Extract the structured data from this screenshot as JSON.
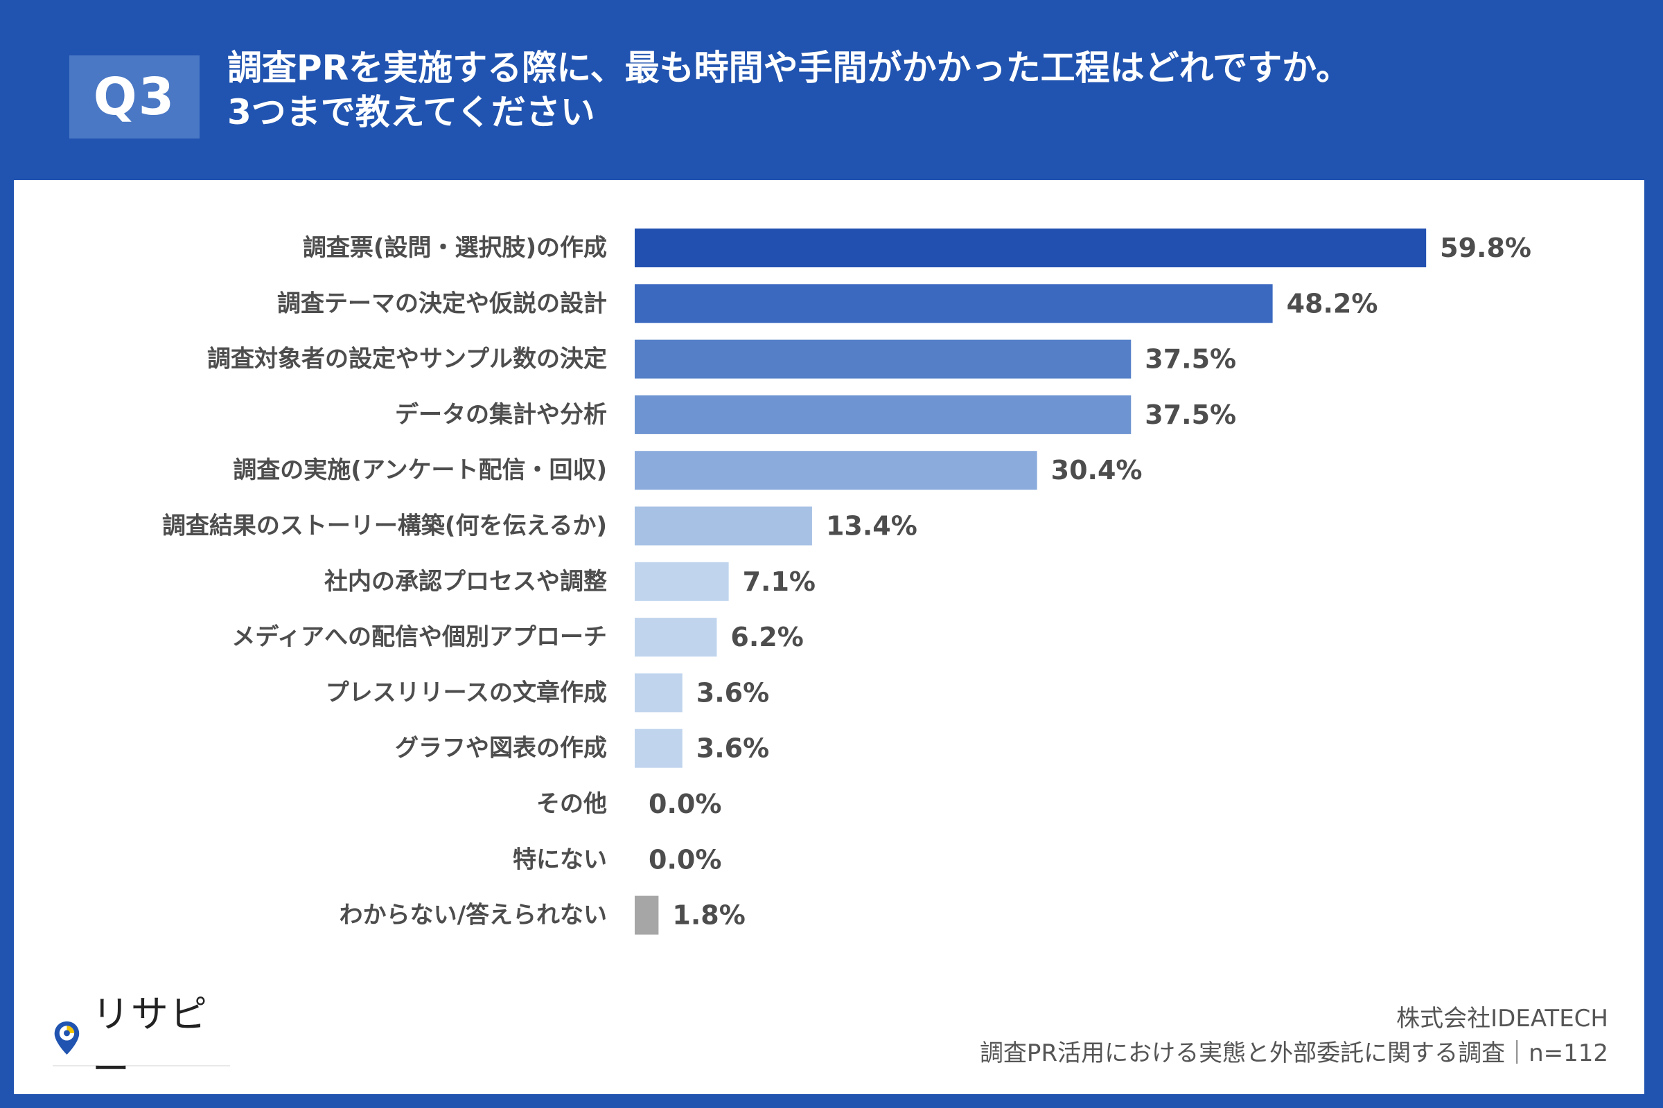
{
  "header": {
    "badge": "Q3",
    "title_line1": "調査PRを実施する際に、最も時間や手間がかかった工程はどれですか。",
    "title_line2": "3つまで教えてください"
  },
  "colors": {
    "background": "#2154b0",
    "badge": "#4a78c5",
    "panel": "#ffffff",
    "text": "#4d4d4d"
  },
  "chart_data": {
    "type": "bar",
    "orientation": "horizontal",
    "title": "調査PRを実施する際に、最も時間や手間がかかった工程はどれですか。3つまで教えてください",
    "xlabel": "",
    "ylabel": "",
    "xlim": [
      0,
      100
    ],
    "unit": "%",
    "grid": false,
    "categories": [
      "調査票(設問・選択肢)の作成",
      "調査テーマの決定や仮説の設計",
      "調査対象者の設定やサンプル数の決定",
      "データの集計や分析",
      "調査の実施(アンケート配信・回収)",
      "調査結果のストーリー構築(何を伝えるか)",
      "社内の承認プロセスや調整",
      "メディアへの配信や個別アプローチ",
      "プレスリリースの文章作成",
      "グラフや図表の作成",
      "その他",
      "特にない",
      "わからない/答えられない"
    ],
    "values": [
      59.8,
      48.2,
      37.5,
      37.5,
      30.4,
      13.4,
      7.1,
      6.2,
      3.6,
      3.6,
      0.0,
      0.0,
      1.8
    ],
    "value_labels": [
      "59.8%",
      "48.2%",
      "37.5%",
      "37.5%",
      "30.4%",
      "13.4%",
      "7.1%",
      "6.2%",
      "3.6%",
      "3.6%",
      "0.0%",
      "0.0%",
      "1.8%"
    ],
    "bar_colors": [
      "#2150b0",
      "#3b69c0",
      "#5580c8",
      "#6e95d1",
      "#8aabdc",
      "#a7c1e5",
      "#c0d4ee",
      "#c0d4ee",
      "#c0d4ee",
      "#c0d4ee",
      "#c0d4ee",
      "#c0d4ee",
      "#a6a6a6"
    ]
  },
  "logo": {
    "text": "リサピー",
    "icon": "location-pin-icon"
  },
  "footer": {
    "company": "株式会社IDEATECH",
    "survey": "調査PR活用における実態と外部委託に関する調査｜n=112"
  }
}
